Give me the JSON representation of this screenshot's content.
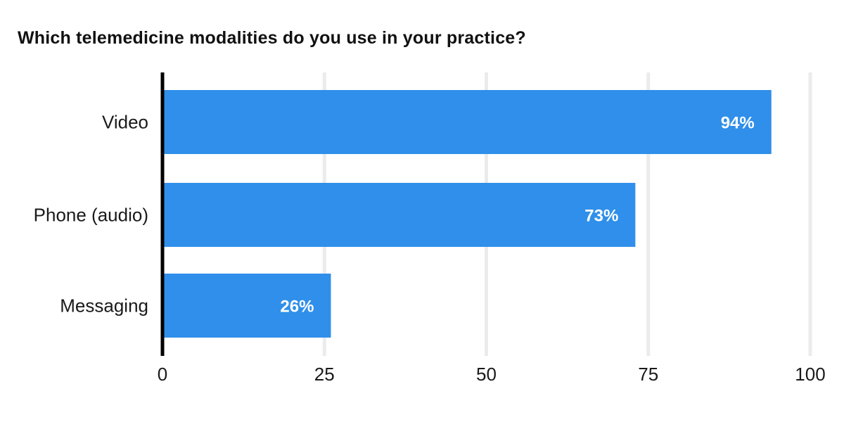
{
  "chart_data": {
    "type": "bar",
    "orientation": "horizontal",
    "title": "Which telemedicine modalities do you use in your practice?",
    "categories": [
      "Video",
      "Phone (audio)",
      "Messaging"
    ],
    "values": [
      94,
      73,
      26
    ],
    "data_labels": [
      "94%",
      "73%",
      "26%"
    ],
    "xlim": [
      0,
      100
    ],
    "x_ticks": [
      "0",
      "25",
      "50",
      "75",
      "100"
    ],
    "grid": true,
    "legend": "none",
    "colors": {
      "bar": "#2f8fea",
      "grid": "#ebebeb",
      "axis": "#000000",
      "data_label": "#ffffff"
    }
  }
}
